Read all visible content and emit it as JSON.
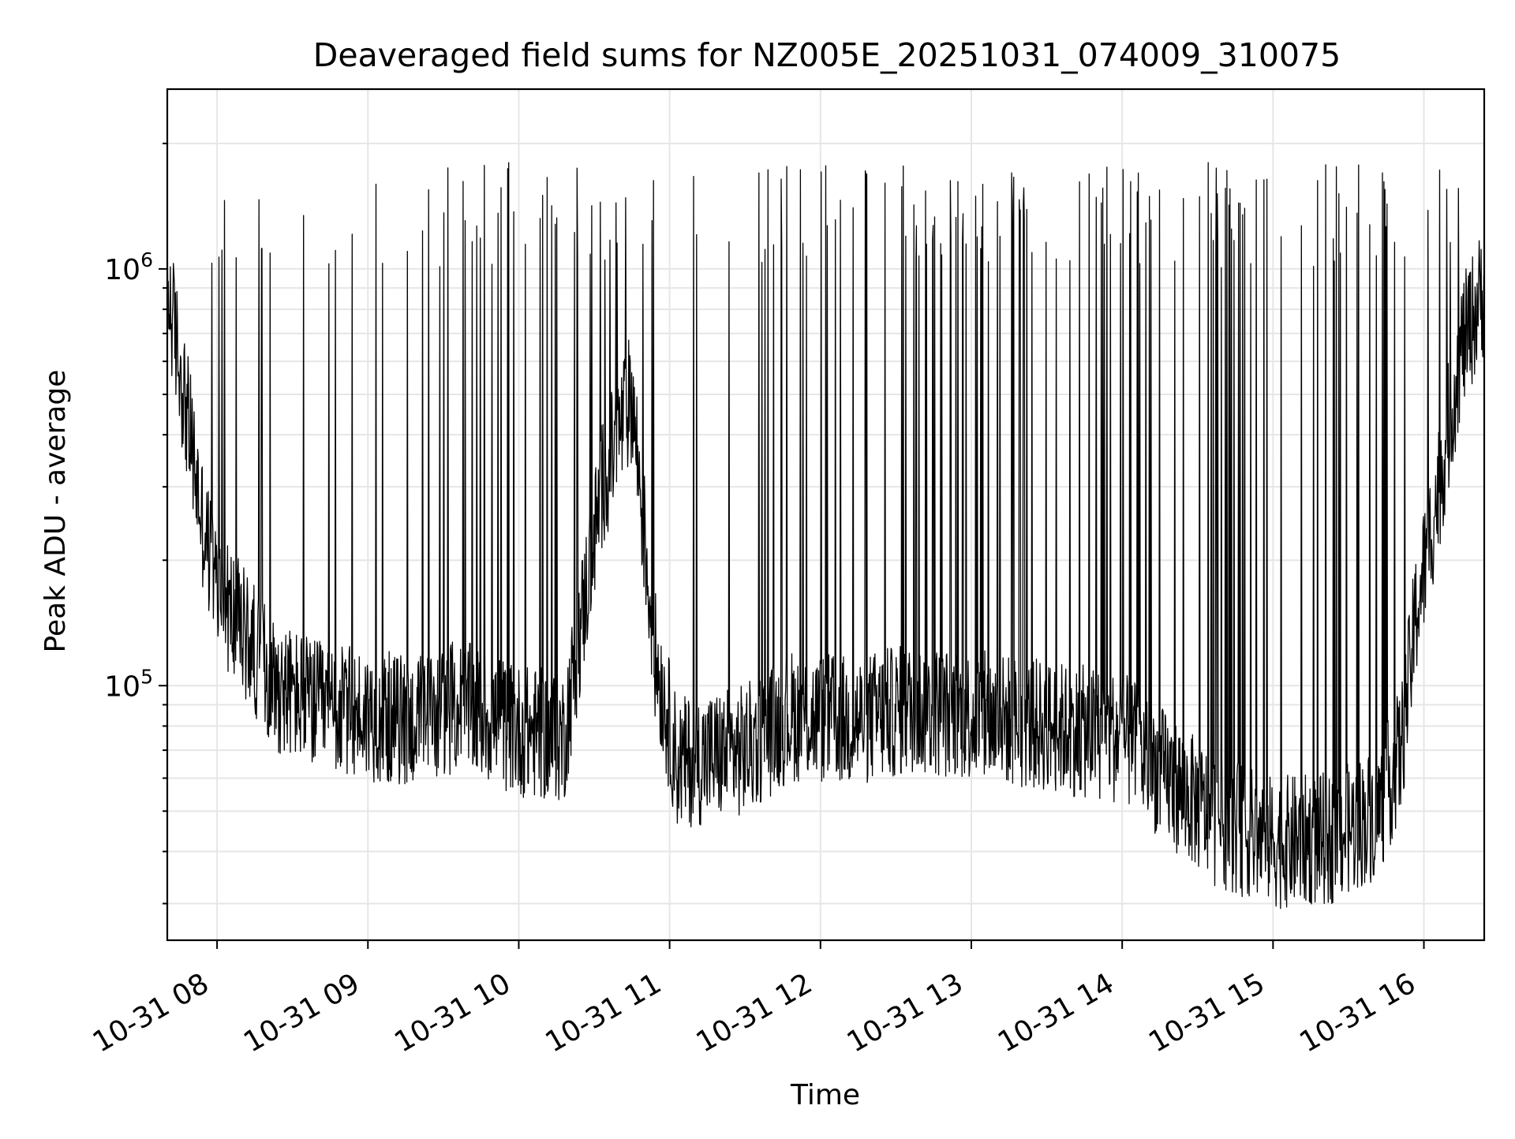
{
  "chart_data": {
    "type": "line",
    "title": "Deaveraged field sums for NZ005E_20251031_074009_310075",
    "xlabel": "Time",
    "ylabel": "Peak ADU - average",
    "yscale": "log",
    "ylim": [
      24500,
      2700000
    ],
    "xlim_hours": [
      7.67,
      16.4
    ],
    "x_ticks": [
      {
        "hour": 8,
        "label": "10-31 08"
      },
      {
        "hour": 9,
        "label": "10-31 09"
      },
      {
        "hour": 10,
        "label": "10-31 10"
      },
      {
        "hour": 11,
        "label": "10-31 11"
      },
      {
        "hour": 12,
        "label": "10-31 12"
      },
      {
        "hour": 13,
        "label": "10-31 13"
      },
      {
        "hour": 14,
        "label": "10-31 14"
      },
      {
        "hour": 15,
        "label": "10-31 15"
      },
      {
        "hour": 16,
        "label": "10-31 16"
      }
    ],
    "y_ticks": [
      {
        "value": 100000,
        "base": "10",
        "exp": "5"
      },
      {
        "value": 1000000,
        "base": "10",
        "exp": "6"
      }
    ],
    "grid": true,
    "line_color": "#000000",
    "series": [
      {
        "name": "Deaveraged field sum",
        "baseline_points": [
          [
            7.67,
            900000
          ],
          [
            7.72,
            700000
          ],
          [
            7.8,
            450000
          ],
          [
            7.9,
            250000
          ],
          [
            8.0,
            170000
          ],
          [
            8.2,
            130000
          ],
          [
            8.4,
            100000
          ],
          [
            8.7,
            88000
          ],
          [
            9.0,
            85000
          ],
          [
            9.3,
            82000
          ],
          [
            9.6,
            90000
          ],
          [
            10.0,
            78000
          ],
          [
            10.3,
            75000
          ],
          [
            10.55,
            300000
          ],
          [
            10.75,
            500000
          ],
          [
            10.9,
            120000
          ],
          [
            11.05,
            65000
          ],
          [
            11.5,
            70000
          ],
          [
            11.8,
            85000
          ],
          [
            12.2,
            82000
          ],
          [
            12.6,
            88000
          ],
          [
            13.0,
            85000
          ],
          [
            13.5,
            80000
          ],
          [
            14.0,
            75000
          ],
          [
            14.3,
            60000
          ],
          [
            14.6,
            48000
          ],
          [
            15.0,
            42000
          ],
          [
            15.4,
            43000
          ],
          [
            15.7,
            50000
          ],
          [
            15.85,
            70000
          ],
          [
            15.95,
            150000
          ],
          [
            16.1,
            300000
          ],
          [
            16.25,
            650000
          ],
          [
            16.4,
            900000
          ]
        ],
        "spike_frequency_per_hour": [
          [
            7.67,
            8
          ],
          [
            8.5,
            10
          ],
          [
            9.5,
            12
          ],
          [
            10.4,
            40
          ],
          [
            10.9,
            6
          ],
          [
            11.5,
            8
          ],
          [
            12.3,
            25
          ],
          [
            13.0,
            40
          ],
          [
            14.0,
            40
          ],
          [
            15.0,
            35
          ],
          [
            16.4,
            10
          ]
        ],
        "spike_peak_range": [
          1000000,
          1800000
        ]
      }
    ]
  }
}
